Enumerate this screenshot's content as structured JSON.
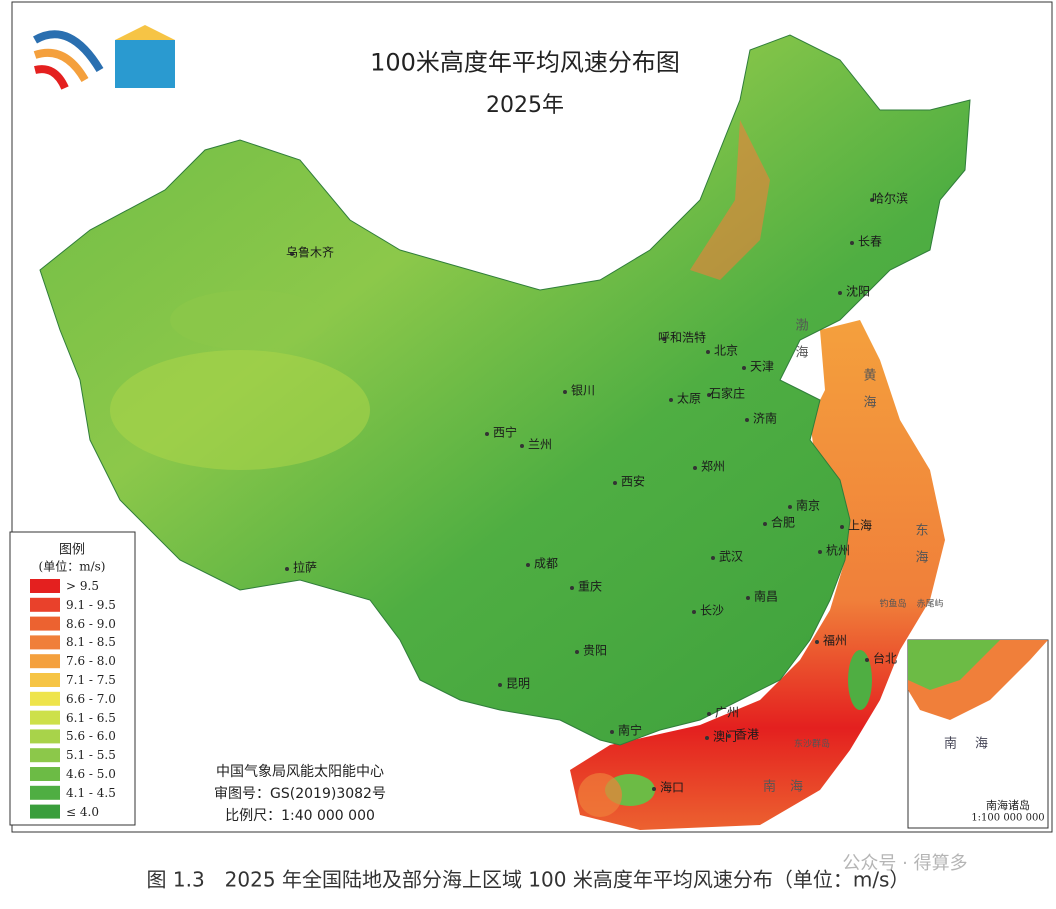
{
  "header": {
    "title": "100米高度年平均风速分布图",
    "year": "2025年"
  },
  "legend": {
    "title": "图例",
    "unit": "(单位：m/s)",
    "items": [
      {
        "label": "> 9.5",
        "color": "#e4201f"
      },
      {
        "label": "9.1 - 9.5",
        "color": "#e9412b"
      },
      {
        "label": "8.6 - 9.0",
        "color": "#ec6230"
      },
      {
        "label": "8.1 - 8.5",
        "color": "#f07f3a"
      },
      {
        "label": "7.6 - 8.0",
        "color": "#f4a03d"
      },
      {
        "label": "7.1 - 7.5",
        "color": "#f6c445"
      },
      {
        "label": "6.6 - 7.0",
        "color": "#eee44c"
      },
      {
        "label": "6.1 - 6.5",
        "color": "#cde04a"
      },
      {
        "label": "5.6 - 6.0",
        "color": "#a8d34a"
      },
      {
        "label": "5.1 - 5.5",
        "color": "#8cc84a"
      },
      {
        "label": "4.6 - 5.0",
        "color": "#6cbb45"
      },
      {
        "label": "4.1 - 4.5",
        "color": "#4fae42"
      },
      {
        "label": "≤ 4.0",
        "color": "#3a9e3c"
      }
    ]
  },
  "cities": [
    "乌鲁木齐",
    "哈尔滨",
    "长春",
    "沈阳",
    "呼和浩特",
    "北京",
    "天津",
    "银川",
    "太原",
    "石家庄",
    "济南",
    "西宁",
    "兰州",
    "郑州",
    "西安",
    "南京",
    "合肥",
    "上海",
    "杭州",
    "成都",
    "武汉",
    "重庆",
    "南昌",
    "长沙",
    "拉萨",
    "福州",
    "台北",
    "贵阳",
    "昆明",
    "南宁",
    "广州",
    "澳门",
    "香港",
    "海口"
  ],
  "sea_labels": [
    "渤海",
    "黄海",
    "东海",
    "南海",
    "钓鱼岛",
    "赤尾屿",
    "东沙群岛"
  ],
  "inset": {
    "sea": "南海",
    "title": "南海诸岛",
    "scale": "1:100 000 000"
  },
  "credits": [
    "中国气象局风能太阳能中心",
    "审图号：GS(2019)3082号",
    "比例尺：1:40 000 000"
  ],
  "caption": "图 1.3　2025 年全国陆地及部分海上区域 100 米高度年平均风速分布（单位：m/s）",
  "watermark": "公众号 · 得算多"
}
